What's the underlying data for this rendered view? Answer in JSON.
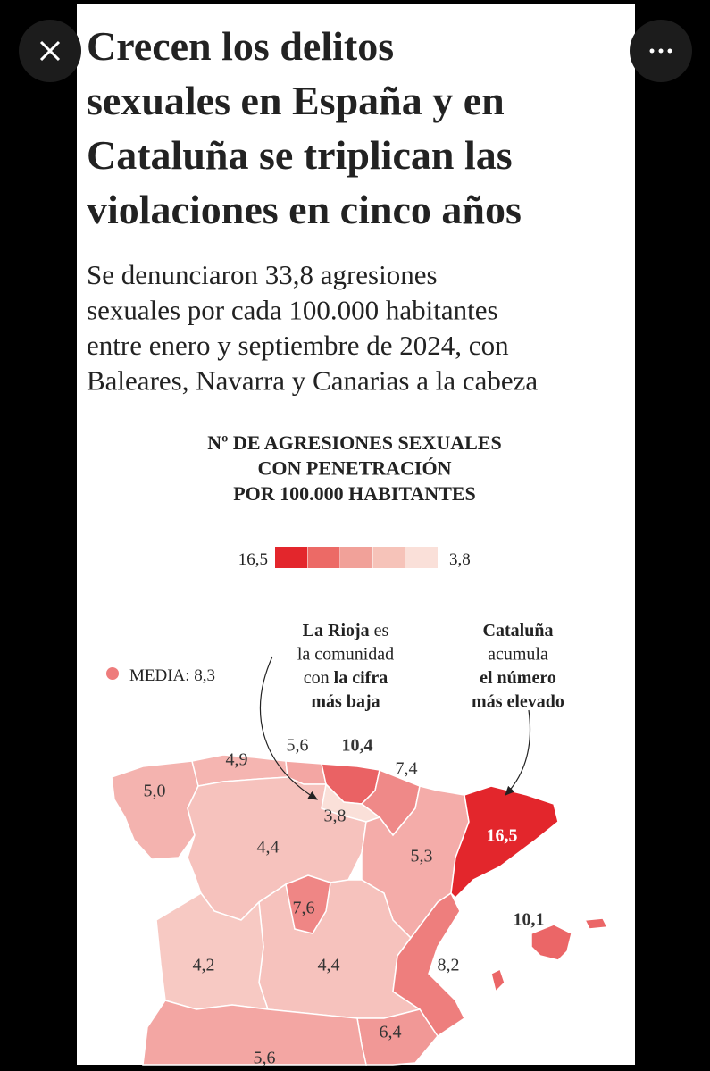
{
  "header": {
    "title_lines": [
      "Crecen los delitos",
      "sexuales en España y en",
      "Cataluña se triplican las",
      "violaciones en cinco años"
    ],
    "subtitle_lines": [
      "Se denunciaron 33,8 agresiones",
      "sexuales por cada 100.000 habitantes",
      "entre enero y septiembre de 2024, con",
      "Baleares, Navarra y Canarias a la cabeza"
    ]
  },
  "map": {
    "title_lines": [
      "Nº DE AGRESIONES SEXUALES",
      "CON PENETRACIÓN",
      "POR 100.000 HABITANTES"
    ],
    "legend": {
      "max": {
        "value": 16.5,
        "label": "16,5"
      },
      "min": {
        "value": 3.8,
        "label": "3,8"
      },
      "colors": [
        "#e3262c",
        "#ec6a66",
        "#f1a199",
        "#f6c3b9",
        "#fae0d9"
      ]
    },
    "media": {
      "text": "MEDIA: 8,3",
      "value": 8.3
    },
    "annotations": [
      {
        "lines": [
          [
            {
              "text": "La Rioja",
              "bold": true
            },
            {
              "text": " es"
            }
          ],
          [
            {
              "text": "la comunidad"
            }
          ],
          [
            {
              "text": "con "
            },
            {
              "text": "la cifra",
              "bold": true
            }
          ],
          [
            {
              "text": "más baja",
              "bold": true
            }
          ]
        ]
      },
      {
        "lines": [
          [
            {
              "text": "Cataluña",
              "bold": true
            }
          ],
          [
            {
              "text": "acumula"
            }
          ],
          [
            {
              "text": "el número",
              "bold": true
            }
          ],
          [
            {
              "text": "más elevado",
              "bold": true
            }
          ]
        ]
      }
    ],
    "regions": [
      {
        "value": 5.0,
        "label": "5,0"
      },
      {
        "value": 4.9,
        "label": "4,9"
      },
      {
        "value": 5.6,
        "label": "5,6"
      },
      {
        "value": 10.4,
        "label": "10,4"
      },
      {
        "value": 7.4,
        "label": "7,4"
      },
      {
        "value": 3.8,
        "label": "3,8"
      },
      {
        "value": 4.4,
        "label": "4,4"
      },
      {
        "value": 5.3,
        "label": "5,3"
      },
      {
        "value": 16.5,
        "label": "16,5"
      },
      {
        "value": 7.6,
        "label": "7,6"
      },
      {
        "value": 4.4,
        "label": "4,4"
      },
      {
        "value": 4.2,
        "label": "4,2"
      },
      {
        "value": 8.2,
        "label": "8,2"
      },
      {
        "value": 6.4,
        "label": "6,4"
      },
      {
        "value": 5.6,
        "label": "5,6"
      },
      {
        "value": 10.1,
        "label": "10,1"
      }
    ]
  }
}
